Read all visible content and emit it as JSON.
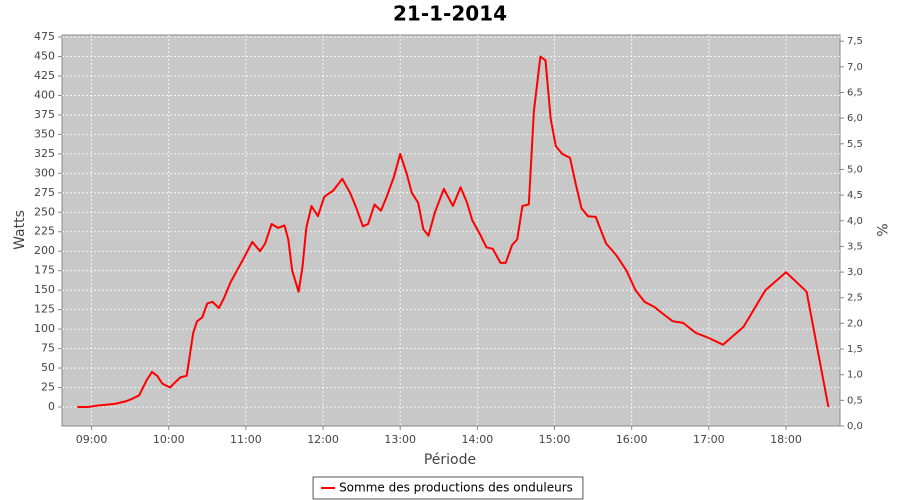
{
  "chart_data": {
    "type": "line",
    "title": "21-1-2014",
    "xlabel": "Période",
    "ylabel": "Watts",
    "y2label": "%",
    "x": [
      "08:49",
      "08:57",
      "09:06",
      "09:18",
      "09:26",
      "09:31",
      "09:37",
      "09:43",
      "09:47",
      "09:51",
      "09:55",
      "10:01",
      "10:04",
      "10:09",
      "10:14",
      "10:19",
      "10:22",
      "10:26",
      "10:30",
      "10:34",
      "10:39",
      "10:43",
      "10:48",
      "10:53",
      "10:58",
      "11:05",
      "11:11",
      "11:15",
      "11:20",
      "11:25",
      "11:30",
      "11:33",
      "11:36",
      "11:41",
      "11:44",
      "11:47",
      "11:51",
      "11:56",
      "12:01",
      "12:08",
      "12:15",
      "12:21",
      "12:26",
      "12:31",
      "12:35",
      "12:40",
      "12:45",
      "12:49",
      "12:55",
      "13:00",
      "13:05",
      "13:09",
      "13:14",
      "13:18",
      "13:22",
      "13:27",
      "13:34",
      "13:41",
      "13:47",
      "13:52",
      "13:56",
      "14:02",
      "14:07",
      "14:12",
      "14:18",
      "14:22",
      "14:27",
      "14:31",
      "14:35",
      "14:40",
      "14:44",
      "14:49",
      "14:53",
      "14:57",
      "15:01",
      "15:06",
      "15:12",
      "15:16",
      "15:21",
      "15:26",
      "15:32",
      "15:40",
      "15:48",
      "15:56",
      "16:03",
      "16:10",
      "16:18",
      "16:24",
      "16:32",
      "16:40",
      "16:50",
      "16:58",
      "17:11",
      "17:27",
      "17:44",
      "18:00",
      "18:16",
      "18:33"
    ],
    "series": [
      {
        "name": "Somme des productions des onduleurs",
        "color": "#ff0000",
        "values": [
          0,
          0,
          2,
          4,
          7,
          10,
          15,
          35,
          45,
          40,
          30,
          25,
          30,
          38,
          40,
          95,
          110,
          115,
          133,
          135,
          127,
          140,
          160,
          175,
          190,
          212,
          200,
          210,
          235,
          230,
          233,
          215,
          175,
          148,
          180,
          230,
          258,
          245,
          270,
          278,
          293,
          275,
          255,
          232,
          235,
          260,
          252,
          268,
          295,
          325,
          300,
          275,
          262,
          228,
          220,
          250,
          280,
          258,
          282,
          262,
          240,
          222,
          205,
          203,
          185,
          185,
          208,
          215,
          258,
          260,
          380,
          450,
          445,
          370,
          335,
          325,
          320,
          290,
          255,
          245,
          244,
          210,
          195,
          175,
          150,
          135,
          128,
          120,
          110,
          108,
          95,
          90,
          80,
          103,
          150,
          173,
          148,
          0
        ]
      }
    ],
    "xlim": [
      "08:37",
      "18:42"
    ],
    "xticks": [
      "09:00",
      "10:00",
      "11:00",
      "12:00",
      "13:00",
      "14:00",
      "15:00",
      "16:00",
      "17:00",
      "18:00"
    ],
    "ylim": [
      -24.4,
      477.6
    ],
    "yticks": [
      0,
      25,
      50,
      75,
      100,
      125,
      150,
      175,
      200,
      225,
      250,
      275,
      300,
      325,
      350,
      375,
      400,
      425,
      450,
      475
    ],
    "y2lim": [
      0,
      7.62
    ],
    "y2ticks": [
      {
        "value": 0,
        "label": "0,0"
      },
      {
        "value": 0.5,
        "label": "0,5"
      },
      {
        "value": 1,
        "label": "1,0"
      },
      {
        "value": 1.5,
        "label": "1,5"
      },
      {
        "value": 2,
        "label": "2,0"
      },
      {
        "value": 2.5,
        "label": "2,5"
      },
      {
        "value": 3,
        "label": "3,0"
      },
      {
        "value": 3.5,
        "label": "3,5"
      },
      {
        "value": 4,
        "label": "4,0"
      },
      {
        "value": 4.5,
        "label": "4,5"
      },
      {
        "value": 5,
        "label": "5,0"
      },
      {
        "value": 5.5,
        "label": "5,5"
      },
      {
        "value": 6,
        "label": "6,0"
      },
      {
        "value": 6.5,
        "label": "6,5"
      },
      {
        "value": 7,
        "label": "7,0"
      },
      {
        "value": 7.5,
        "label": "7,5"
      }
    ],
    "grid": true,
    "plot_background": "#c8c8c8",
    "legend": "bottom"
  }
}
